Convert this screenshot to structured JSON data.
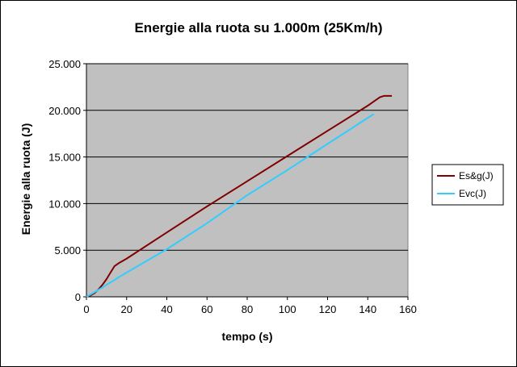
{
  "chart_data": {
    "type": "line",
    "title": "Energie alla ruota su 1.000m (25Km/h)",
    "xlabel": "tempo (s)",
    "ylabel": "Energie alla ruota (J)",
    "xlim": [
      0,
      160
    ],
    "ylim": [
      0,
      25000
    ],
    "x_ticks": [
      "0",
      "20",
      "40",
      "60",
      "80",
      "100",
      "120",
      "140",
      "160"
    ],
    "y_ticks": [
      "0",
      "5.000",
      "10.000",
      "15.000",
      "20.000",
      "25.000"
    ],
    "grid": "horizontal",
    "legend_position": "right",
    "series": [
      {
        "name": "Es&g(J)",
        "color": "#800000",
        "x": [
          0,
          2,
          4,
          6,
          8,
          10,
          12,
          14,
          16,
          18,
          20,
          40,
          60,
          80,
          100,
          120,
          140,
          142,
          144,
          146,
          148,
          152
        ],
        "y": [
          0,
          150,
          400,
          800,
          1300,
          1900,
          2600,
          3300,
          3600,
          3850,
          4100,
          6900,
          9700,
          12400,
          15100,
          17800,
          20500,
          20800,
          21100,
          21400,
          21550,
          21550
        ]
      },
      {
        "name": "Evc(J)",
        "color": "#33ccff",
        "x": [
          0,
          2,
          4,
          6,
          8,
          10,
          12,
          14,
          16,
          20,
          40,
          60,
          80,
          100,
          120,
          143
        ],
        "y": [
          0,
          250,
          500,
          750,
          1000,
          1300,
          1550,
          1800,
          2100,
          2600,
          5100,
          7900,
          10900,
          13600,
          16400,
          19600
        ]
      }
    ]
  }
}
